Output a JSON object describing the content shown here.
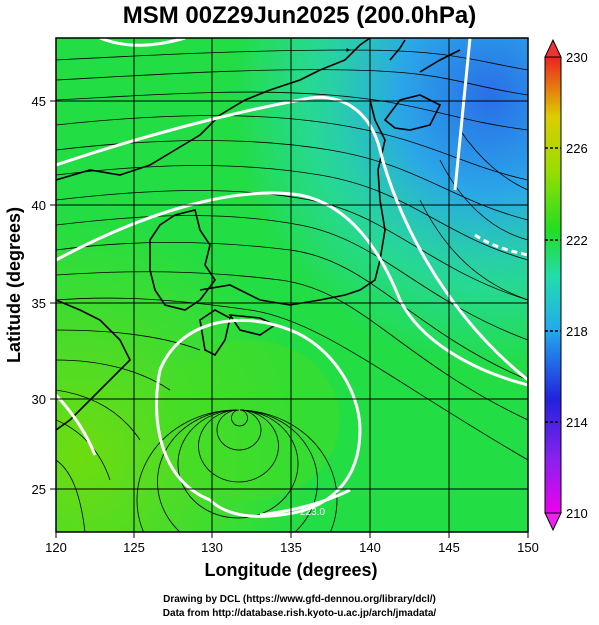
{
  "title": "MSM 00Z29Jun2025 (200.0hPa)",
  "map": {
    "xlabel": "Longitude (degrees)",
    "ylabel": "Latitude  (degrees)",
    "x_ticks": [
      "120",
      "125",
      "130",
      "135",
      "140",
      "145",
      "150"
    ],
    "y_ticks": [
      "25",
      "30",
      "35",
      "40",
      "45"
    ],
    "lon_range": [
      120,
      150
    ],
    "lat_range": [
      22.4,
      47.6
    ],
    "contour_label": "223.0"
  },
  "colorbar": {
    "min": 210,
    "max": 230,
    "ticks": [
      "210",
      "214",
      "218",
      "222",
      "226",
      "230"
    ],
    "colors": [
      "#ee00ee",
      "#2222dd",
      "#22ccee",
      "#22dd22",
      "#aadd00",
      "#ee2222"
    ]
  },
  "credits": {
    "line1": "Drawing by DCL (https://www.gfd-dennou.org/library/dcl/)",
    "line2": "Data from http://database.rish.kyoto-u.ac.jp/arch/jmadata/"
  }
}
